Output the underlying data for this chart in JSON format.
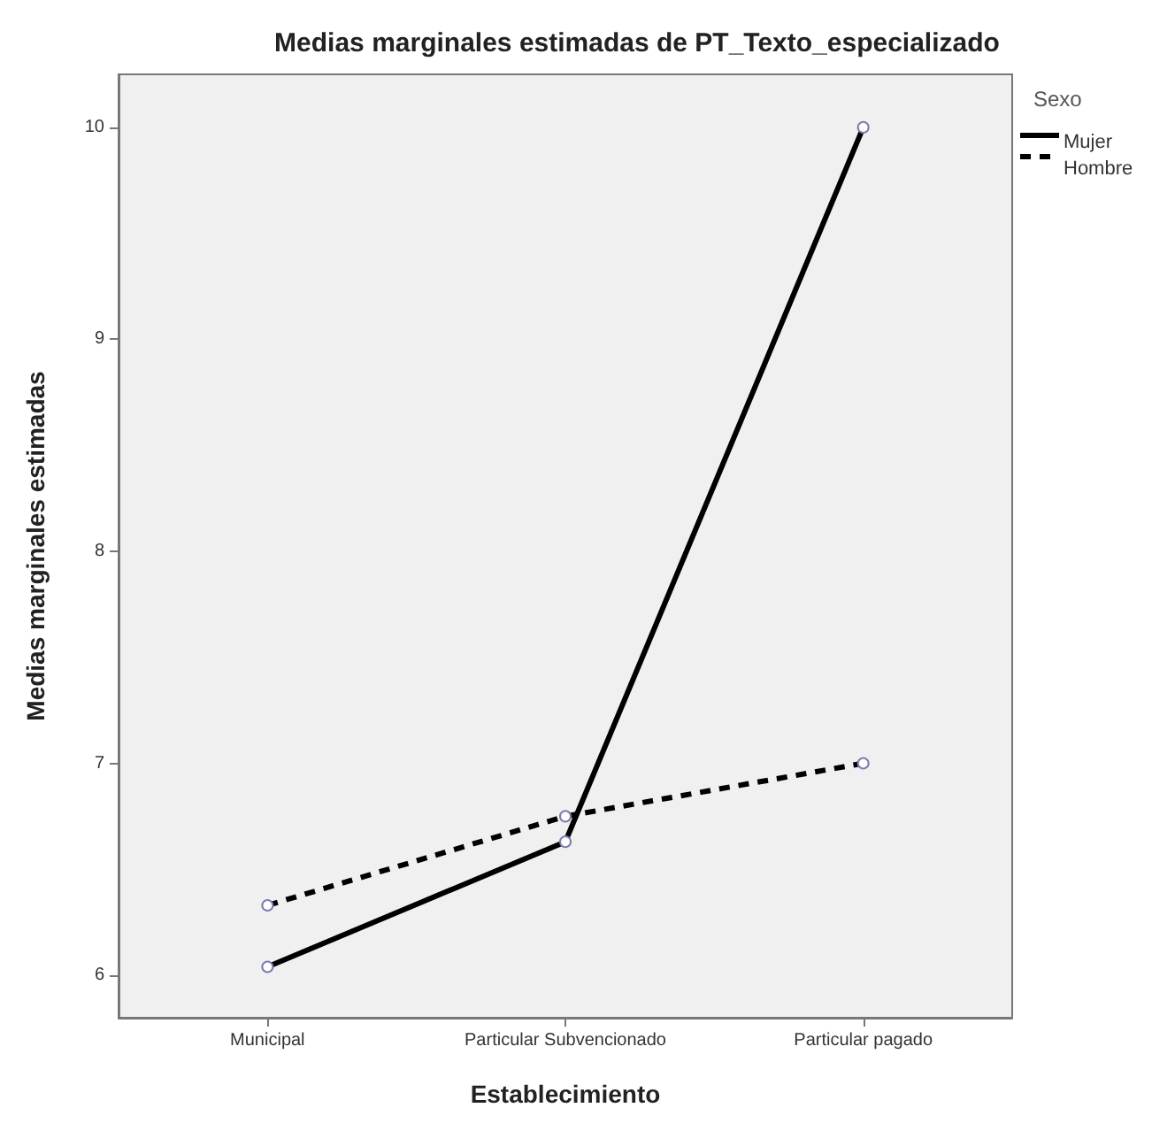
{
  "chart_data": {
    "type": "line",
    "title": "Medias marginales estimadas de PT_Texto_especializado",
    "xlabel": "Establecimiento",
    "ylabel": "Medias marginales estimadas",
    "legend_title": "Sexo",
    "categories": [
      "Municipal",
      "Particular Subvencionado",
      "Particular pagado"
    ],
    "series": [
      {
        "name": "Mujer",
        "color": "#000000",
        "values": [
          6.04,
          6.63,
          10.0
        ],
        "line_style": "solid"
      },
      {
        "name": "Hombre",
        "color": "#000000",
        "values": [
          6.33,
          6.75,
          7.0
        ],
        "line_style": "dashed"
      }
    ],
    "ylim": [
      5.8,
      10.25
    ],
    "yticks": [
      6,
      7,
      8,
      9,
      10
    ],
    "grid": false,
    "legend": "top right",
    "marker": "circle"
  }
}
